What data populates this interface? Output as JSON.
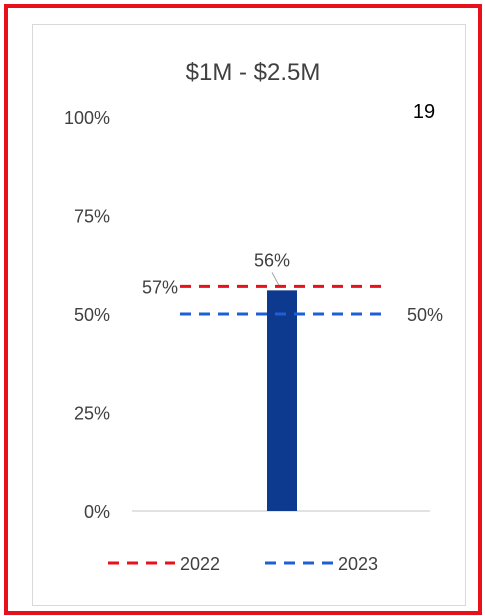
{
  "chart_data": {
    "type": "bar",
    "title": "$1M - $2.5M",
    "count_label": "19",
    "categories": [
      ""
    ],
    "values": [
      56
    ],
    "value_labels": [
      "56%"
    ],
    "ylim": [
      0,
      100
    ],
    "yticks": [
      "0%",
      "25%",
      "50%",
      "75%",
      "100%"
    ],
    "ytick_values": [
      0,
      25,
      50,
      75,
      100
    ],
    "reference_lines": [
      {
        "name": "2022",
        "value": 57,
        "label": "57%",
        "color": "#e8101b",
        "style": "dashed",
        "label_side": "left"
      },
      {
        "name": "2023",
        "value": 50,
        "label": "50%",
        "color": "#1f5fd6",
        "style": "dashed",
        "label_side": "right"
      }
    ],
    "bar_color": "#0d3a8e",
    "grid": false,
    "legend_position": "bottom"
  },
  "colors": {
    "frame": "#e8101b",
    "bar": "#0d3a8e",
    "line_2022": "#e8101b",
    "line_2023": "#1f5fd6",
    "text": "#404040"
  }
}
